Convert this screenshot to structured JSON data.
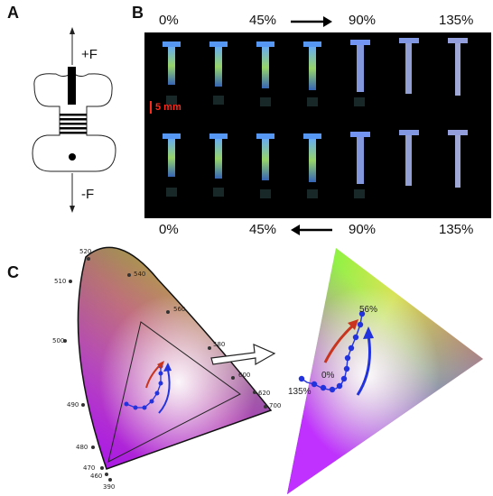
{
  "panels": {
    "a": "A",
    "b": "B",
    "c": "C"
  },
  "panel_a": {
    "plus_force": "+F",
    "minus_force": "-F"
  },
  "panel_b": {
    "top_labels": [
      "0%",
      "45%",
      "90%",
      "135%"
    ],
    "bottom_labels": [
      "0%",
      "45%",
      "90%",
      "135%"
    ],
    "scale_bar": "5 mm"
  },
  "panel_c": {
    "wavelengths": [
      "520",
      "540",
      "510",
      "560",
      "500",
      "580",
      "600",
      "620",
      "490",
      "700",
      "480",
      "470",
      "460",
      "390"
    ],
    "zoom_labels": {
      "start": "0%",
      "peak": "56%",
      "end": "135%"
    }
  },
  "colors": {
    "arrow_red": "#c8341e",
    "arrow_blue": "#2233dd",
    "scale_red": "#ff2a1a"
  }
}
